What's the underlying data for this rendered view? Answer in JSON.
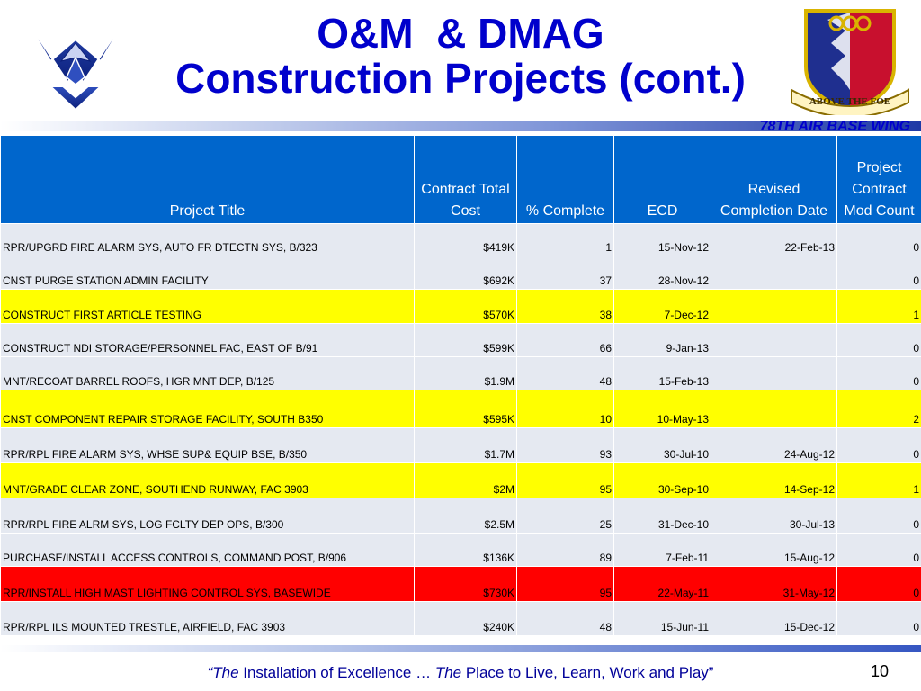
{
  "header": {
    "title_line1": "O&M  & DMAG",
    "title_line2": "Construction Projects (cont.)",
    "org": "78TH AIR BASE WING",
    "emblem_text": "ABOVE THE FOE"
  },
  "table": {
    "columns": [
      "Project Title",
      "Contract Total Cost",
      "% Complete",
      "ECD",
      "Revised Completion Date",
      "Project Contract Mod Count"
    ],
    "rows": [
      {
        "title": "RPR/UPGRD FIRE ALARM SYS, AUTO FR DTECTN SYS, B/323",
        "cost": "$419K",
        "pct": "1",
        "ecd": "15-Nov-12",
        "revised": "22-Feb-13",
        "mods": "0",
        "highlight": "none"
      },
      {
        "title": "CNST PURGE STATION ADMIN FACILITY",
        "cost": "$692K",
        "pct": "37",
        "ecd": "28-Nov-12",
        "revised": "",
        "mods": "0",
        "highlight": "none"
      },
      {
        "title": "CONSTRUCT FIRST ARTICLE TESTING",
        "cost": "$570K",
        "pct": "38",
        "ecd": "7-Dec-12",
        "revised": "",
        "mods": "1",
        "highlight": "yellow"
      },
      {
        "title": "CONSTRUCT NDI STORAGE/PERSONNEL FAC, EAST OF B/91",
        "cost": "$599K",
        "pct": "66",
        "ecd": "9-Jan-13",
        "revised": "",
        "mods": "0",
        "highlight": "none"
      },
      {
        "title": "MNT/RECOAT BARREL ROOFS, HGR MNT DEP, B/125",
        "cost": "$1.9M",
        "pct": "48",
        "ecd": "15-Feb-13",
        "revised": "",
        "mods": "0",
        "highlight": "none"
      },
      {
        "title": "CNST COMPONENT REPAIR STORAGE FACILITY, SOUTH B350",
        "cost": "$595K",
        "pct": "10",
        "ecd": "10-May-13",
        "revised": "",
        "mods": "2",
        "highlight": "yellow"
      },
      {
        "title": "RPR/RPL FIRE ALARM SYS, WHSE SUP& EQUIP BSE, B/350",
        "cost": "$1.7M",
        "pct": "93",
        "ecd": "30-Jul-10",
        "revised": "24-Aug-12",
        "mods": "0",
        "highlight": "none"
      },
      {
        "title": "MNT/GRADE CLEAR ZONE, SOUTHEND RUNWAY, FAC 3903",
        "cost": "$2M",
        "pct": "95",
        "ecd": "30-Sep-10",
        "revised": "14-Sep-12",
        "mods": "1",
        "highlight": "yellow"
      },
      {
        "title": "RPR/RPL FIRE ALRM SYS, LOG FCLTY DEP OPS, B/300",
        "cost": "$2.5M",
        "pct": "25",
        "ecd": "31-Dec-10",
        "revised": "30-Jul-13",
        "mods": "0",
        "highlight": "none"
      },
      {
        "title": "PURCHASE/INSTALL ACCESS CONTROLS, COMMAND POST, B/906",
        "cost": "$136K",
        "pct": "89",
        "ecd": "7-Feb-11",
        "revised": "15-Aug-12",
        "mods": "0",
        "highlight": "none"
      },
      {
        "title": "RPR/INSTALL HIGH MAST LIGHTING CONTROL SYS, BASEWIDE",
        "cost": "$730K",
        "pct": "95",
        "ecd": "22-May-11",
        "revised": "31-May-12",
        "mods": "0",
        "highlight": "red"
      },
      {
        "title": "RPR/RPL ILS MOUNTED TRESTLE, AIRFIELD, FAC 3903",
        "cost": "$240K",
        "pct": "48",
        "ecd": "15-Jun-11",
        "revised": "15-Dec-12",
        "mods": "0",
        "highlight": "none"
      }
    ]
  },
  "footer": {
    "quote_open": "“The",
    "part1": " Installation of Excellence … ",
    "the2": "The",
    "part2": " Place to Live, Learn, Work and Play”",
    "page_number": "10"
  },
  "colors": {
    "title": "#0000cc",
    "header_fill": "#0066cc",
    "row_fill": "#e5e9f1",
    "highlight_yellow": "#ffff00",
    "highlight_red": "#ff0000"
  },
  "icons": {
    "left_logo": "air-force-wings-logo",
    "right_logo": "unit-shield-emblem"
  }
}
